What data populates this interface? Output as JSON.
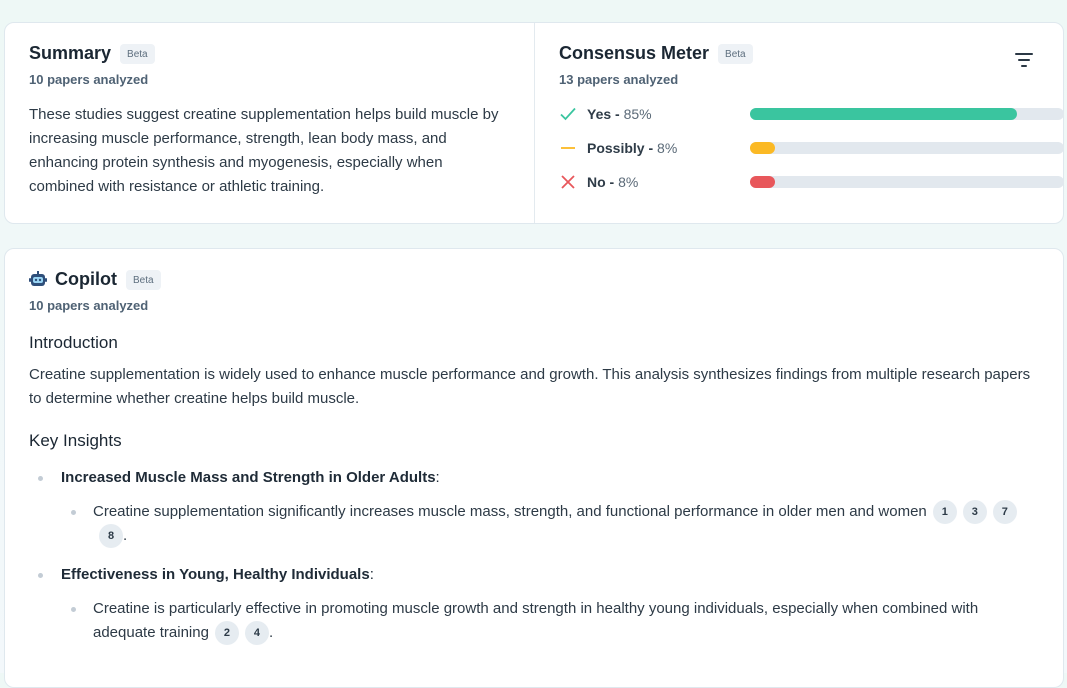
{
  "summary": {
    "title": "Summary",
    "beta": "Beta",
    "papers": "10 papers analyzed",
    "text": "These studies suggest creatine supplementation helps build muscle by increasing muscle performance, strength, lean body mass, and enhancing protein synthesis and myogenesis, especially when combined with resistance or athletic training."
  },
  "meter": {
    "title": "Consensus Meter",
    "beta": "Beta",
    "papers": "13 papers analyzed",
    "rows": [
      {
        "label": "Yes",
        "pct_text": "85%",
        "value": 0.85,
        "color": "#3ac59f",
        "icon": "check-icon"
      },
      {
        "label": "Possibly",
        "pct_text": "8%",
        "value": 0.08,
        "color": "#fbb924",
        "icon": "dash-icon"
      },
      {
        "label": "No",
        "pct_text": "8%",
        "value": 0.08,
        "color": "#e8575b",
        "icon": "x-icon"
      }
    ]
  },
  "copilot": {
    "title": "Copilot",
    "beta": "Beta",
    "papers": "10 papers analyzed",
    "intro_heading": "Introduction",
    "intro_text": "Creatine supplementation is widely used to enhance muscle performance and growth. This analysis synthesizes findings from multiple research papers to determine whether creatine helps build muscle.",
    "insights_heading": "Key Insights",
    "insights": [
      {
        "title": "Increased Muscle Mass and Strength in Older Adults",
        "detail": "Creatine supplementation significantly increases muscle mass, strength, and functional performance in older men and women",
        "cites": [
          "1",
          "3",
          "7",
          "8"
        ]
      },
      {
        "title": "Effectiveness in Young, Healthy Individuals",
        "detail": "Creatine is particularly effective in promoting muscle growth and strength in healthy young individuals, especially when combined with adequate training",
        "cites": [
          "2",
          "4"
        ]
      }
    ]
  }
}
